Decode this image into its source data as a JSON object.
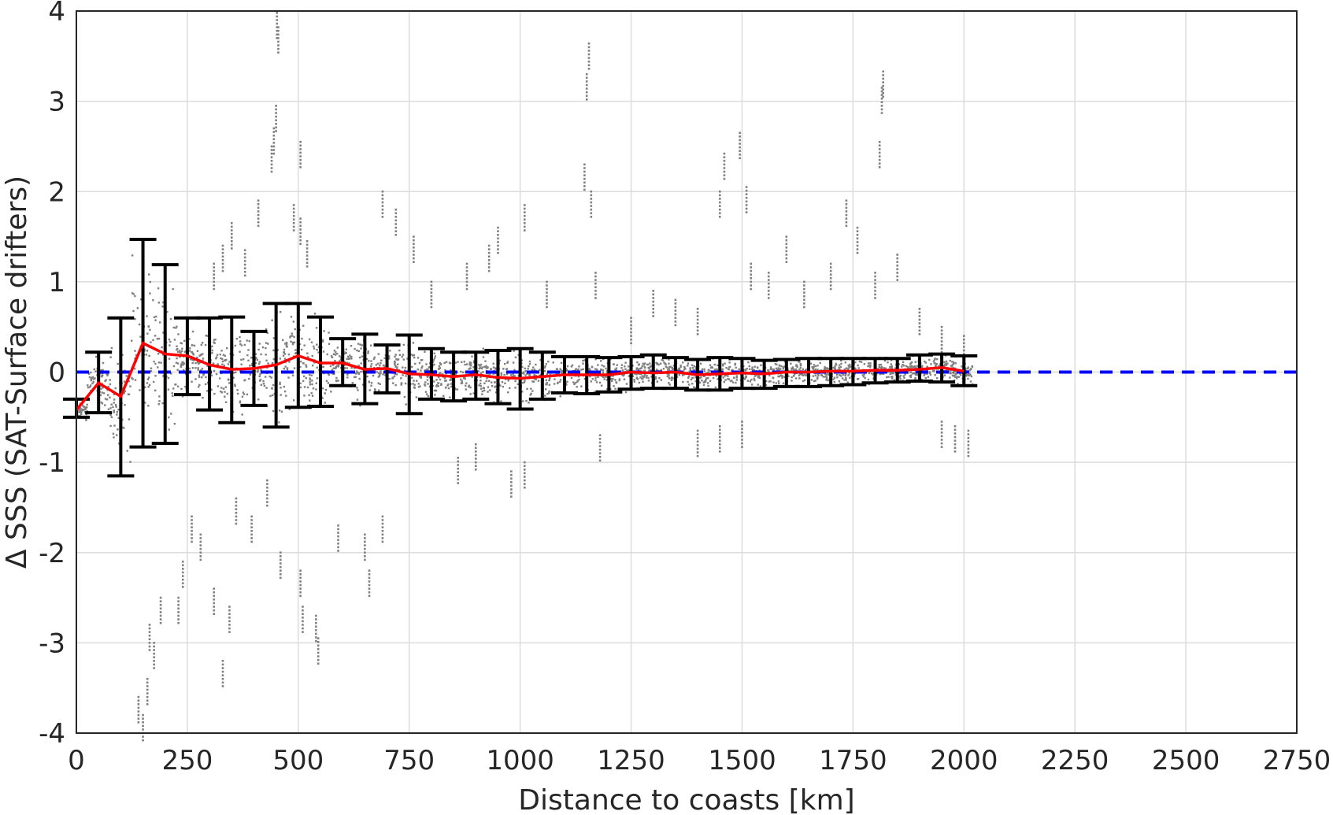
{
  "chart_data": {
    "type": "scatter",
    "xlabel": "Distance to coasts [km]",
    "ylabel": "Δ SSS (SAT-Surface drifters)",
    "xlim": [
      0,
      2750
    ],
    "ylim": [
      -4,
      4
    ],
    "x_ticks": [
      0,
      250,
      500,
      750,
      1000,
      1250,
      1500,
      1750,
      2000,
      2250,
      2500,
      2750
    ],
    "y_ticks": [
      -4,
      -3,
      -2,
      -1,
      0,
      1,
      2,
      3,
      4
    ],
    "x_tick_labels": [
      "0",
      "250",
      "500",
      "750",
      "1000",
      "1250",
      "1500",
      "1750",
      "2000",
      "2250",
      "2500",
      "2750"
    ],
    "y_tick_labels": [
      "-4",
      "-3",
      "-2",
      "-1",
      "0",
      "1",
      "2",
      "3",
      "4"
    ],
    "grid": true,
    "colors": {
      "scatter": "#808080",
      "mean": "#ff0000",
      "zero": "#0000ff",
      "errorbars": "#000000"
    },
    "zero_line": {
      "y": 0,
      "style": "dashed"
    },
    "bins": {
      "x": [
        0,
        50,
        100,
        150,
        200,
        250,
        300,
        350,
        400,
        450,
        500,
        550,
        600,
        650,
        700,
        750,
        800,
        850,
        900,
        950,
        1000,
        1050,
        1100,
        1150,
        1200,
        1250,
        1300,
        1350,
        1400,
        1450,
        1500,
        1550,
        1600,
        1650,
        1700,
        1750,
        1800,
        1850,
        1900,
        1950,
        2000
      ],
      "mean": [
        -0.42,
        -0.12,
        -0.27,
        0.32,
        0.2,
        0.18,
        0.08,
        0.03,
        0.04,
        0.08,
        0.18,
        0.1,
        0.1,
        0.03,
        0.04,
        -0.02,
        -0.03,
        -0.05,
        -0.03,
        -0.06,
        -0.07,
        -0.05,
        -0.03,
        -0.03,
        -0.03,
        0.0,
        -0.01,
        0.0,
        -0.03,
        -0.02,
        -0.01,
        -0.02,
        0.0,
        0.0,
        0.01,
        0.01,
        0.02,
        0.02,
        0.03,
        0.05,
        0.01
      ],
      "lower": [
        -0.5,
        -0.45,
        -1.15,
        -0.83,
        -0.79,
        -0.25,
        -0.42,
        -0.56,
        -0.37,
        -0.61,
        -0.39,
        -0.38,
        -0.15,
        -0.35,
        -0.23,
        -0.46,
        -0.3,
        -0.32,
        -0.3,
        -0.35,
        -0.41,
        -0.3,
        -0.23,
        -0.24,
        -0.22,
        -0.19,
        -0.18,
        -0.18,
        -0.2,
        -0.2,
        -0.18,
        -0.18,
        -0.16,
        -0.16,
        -0.15,
        -0.14,
        -0.12,
        -0.11,
        -0.1,
        -0.11,
        -0.15
      ],
      "upper": [
        -0.3,
        0.22,
        0.6,
        1.47,
        1.19,
        0.6,
        0.6,
        0.61,
        0.45,
        0.76,
        0.76,
        0.61,
        0.37,
        0.42,
        0.3,
        0.41,
        0.26,
        0.22,
        0.22,
        0.24,
        0.26,
        0.22,
        0.17,
        0.17,
        0.16,
        0.17,
        0.19,
        0.16,
        0.14,
        0.16,
        0.15,
        0.13,
        0.14,
        0.15,
        0.15,
        0.15,
        0.15,
        0.15,
        0.19,
        0.2,
        0.18
      ]
    },
    "scatter_sample": [
      [
        452,
        3.98
      ],
      [
        455,
        3.82
      ],
      [
        1155,
        3.64
      ],
      [
        1150,
        3.3
      ],
      [
        1818,
        3.33
      ],
      [
        1815,
        3.15
      ],
      [
        450,
        2.95
      ],
      [
        445,
        2.7
      ],
      [
        440,
        2.5
      ],
      [
        505,
        2.55
      ],
      [
        1495,
        2.65
      ],
      [
        1460,
        2.42
      ],
      [
        1810,
        2.55
      ],
      [
        1510,
        2.05
      ],
      [
        1450,
        2.0
      ],
      [
        1160,
        2.0
      ],
      [
        1145,
        2.3
      ],
      [
        410,
        1.9
      ],
      [
        380,
        1.35
      ],
      [
        350,
        1.65
      ],
      [
        330,
        1.4
      ],
      [
        310,
        1.2
      ],
      [
        490,
        1.85
      ],
      [
        505,
        1.7
      ],
      [
        520,
        1.45
      ],
      [
        690,
        2.0
      ],
      [
        720,
        1.8
      ],
      [
        760,
        1.5
      ],
      [
        800,
        1.0
      ],
      [
        880,
        1.2
      ],
      [
        930,
        1.4
      ],
      [
        950,
        1.6
      ],
      [
        1010,
        1.85
      ],
      [
        1060,
        1.0
      ],
      [
        1170,
        1.1
      ],
      [
        1250,
        0.6
      ],
      [
        1300,
        0.9
      ],
      [
        1350,
        0.8
      ],
      [
        1400,
        0.7
      ],
      [
        1520,
        1.2
      ],
      [
        1560,
        1.1
      ],
      [
        1600,
        1.5
      ],
      [
        1640,
        1.0
      ],
      [
        1700,
        1.2
      ],
      [
        1735,
        1.9
      ],
      [
        1760,
        1.6
      ],
      [
        1800,
        1.1
      ],
      [
        1850,
        1.3
      ],
      [
        1900,
        0.7
      ],
      [
        1950,
        0.5
      ],
      [
        2000,
        0.4
      ],
      [
        150,
        -3.8
      ],
      [
        140,
        -3.6
      ],
      [
        160,
        -3.4
      ],
      [
        175,
        -3.0
      ],
      [
        165,
        -2.8
      ],
      [
        190,
        -2.5
      ],
      [
        230,
        -2.5
      ],
      [
        240,
        -2.1
      ],
      [
        260,
        -1.6
      ],
      [
        280,
        -1.8
      ],
      [
        310,
        -2.4
      ],
      [
        330,
        -3.2
      ],
      [
        345,
        -2.6
      ],
      [
        360,
        -1.4
      ],
      [
        395,
        -1.6
      ],
      [
        430,
        -1.2
      ],
      [
        460,
        -2.0
      ],
      [
        505,
        -2.2
      ],
      [
        510,
        -2.6
      ],
      [
        540,
        -2.7
      ],
      [
        545,
        -2.95
      ],
      [
        590,
        -1.7
      ],
      [
        650,
        -1.8
      ],
      [
        660,
        -2.2
      ],
      [
        690,
        -1.6
      ],
      [
        860,
        -0.95
      ],
      [
        900,
        -0.8
      ],
      [
        980,
        -1.1
      ],
      [
        1010,
        -1.0
      ],
      [
        1180,
        -0.7
      ],
      [
        1400,
        -0.65
      ],
      [
        1450,
        -0.6
      ],
      [
        1500,
        -0.55
      ],
      [
        1950,
        -0.55
      ],
      [
        1980,
        -0.6
      ],
      [
        2010,
        -0.65
      ]
    ]
  }
}
